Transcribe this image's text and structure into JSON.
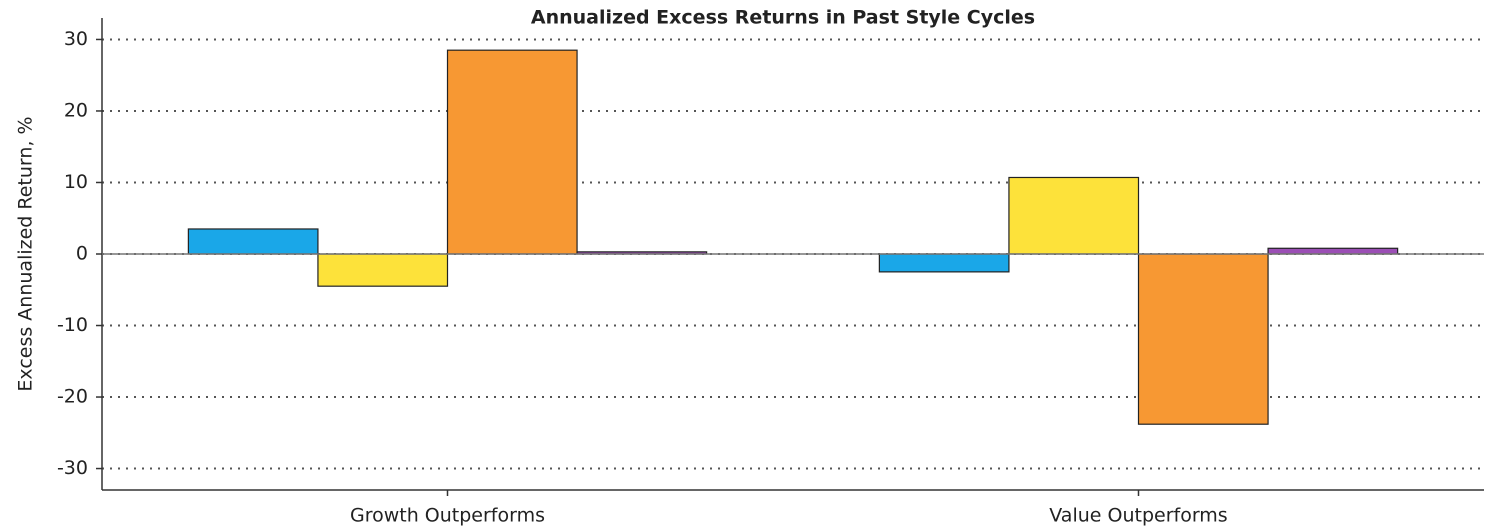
{
  "chart_data": {
    "type": "bar",
    "title": "Annualized Excess Returns in Past Style Cycles",
    "y_label": "Excess Annualized Return, %",
    "categories": [
      "Growth Outperforms",
      "Value Outperforms"
    ],
    "series": [
      {
        "color": "#1aa7e8",
        "values": [
          3.5,
          -2.5
        ]
      },
      {
        "color": "#fde23a",
        "values": [
          -4.5,
          10.7
        ]
      },
      {
        "color": "#f79833",
        "values": [
          28.5,
          -23.8
        ]
      },
      {
        "color": "#9b4fb5",
        "values": [
          0.3,
          0.8
        ]
      }
    ],
    "ylim": [
      -33,
      33
    ],
    "yticks": [
      -30,
      -20,
      -10,
      0,
      10,
      20,
      30
    ],
    "grid": true
  }
}
